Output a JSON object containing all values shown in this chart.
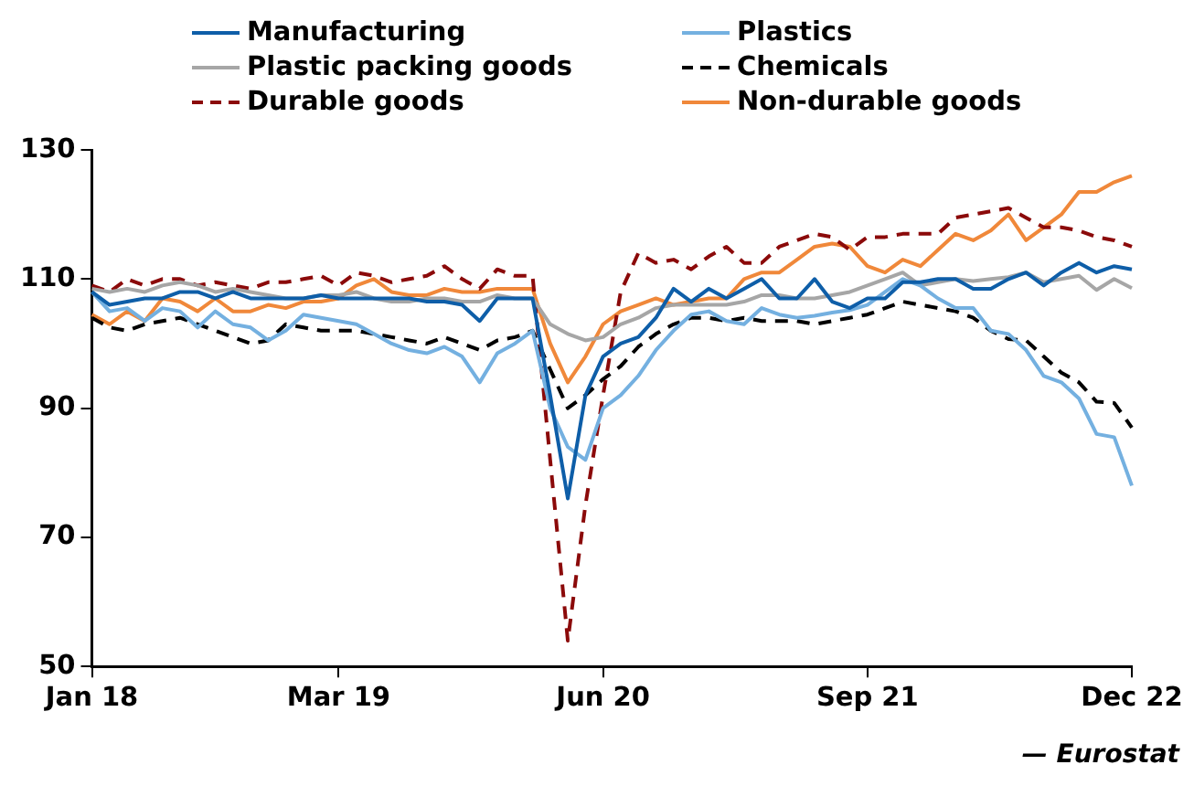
{
  "chart_data": {
    "type": "line",
    "categories": [
      "Jan 18",
      null,
      null,
      null,
      null,
      null,
      null,
      null,
      null,
      null,
      null,
      null,
      null,
      null,
      "Mar 19",
      null,
      null,
      null,
      null,
      null,
      null,
      null,
      null,
      null,
      null,
      null,
      null,
      null,
      null,
      "Jun 20",
      null,
      null,
      null,
      null,
      null,
      null,
      null,
      null,
      null,
      null,
      null,
      null,
      null,
      null,
      "Sep 21",
      null,
      null,
      null,
      null,
      null,
      null,
      null,
      null,
      null,
      null,
      null,
      null,
      null,
      null,
      "Dec 22"
    ],
    "series": [
      {
        "name": "Manufacturing",
        "color": "#0e5ea8",
        "values": [
          108,
          106,
          106.5,
          107,
          107,
          108,
          108,
          107,
          108,
          107,
          107,
          107,
          107,
          107.5,
          107,
          107,
          107,
          107,
          107,
          106.5,
          106.5,
          106,
          103.5,
          107,
          107,
          107,
          92,
          76,
          92,
          98,
          100,
          101,
          104,
          108.5,
          106.5,
          108.5,
          107,
          108.5,
          110,
          107,
          107,
          110,
          106.5,
          105.5,
          107,
          107,
          109.5,
          109.5,
          110,
          110,
          108.5,
          108.5,
          110,
          111,
          109,
          111,
          112.5,
          111,
          112,
          111.5
        ]
      },
      {
        "name": "Plastics",
        "color": "#74b0e0",
        "values": [
          108,
          105,
          105.5,
          103.5,
          105.5,
          105,
          102.5,
          105,
          103,
          102.5,
          100.5,
          102,
          104.5,
          104,
          103.5,
          103,
          101.5,
          100,
          99,
          98.5,
          99.5,
          98,
          94,
          98.5,
          100,
          102,
          90,
          84,
          82,
          90,
          92,
          95,
          99,
          102,
          104.5,
          105,
          103.5,
          103,
          105.5,
          104.5,
          104,
          104.3,
          104.8,
          105.2,
          106,
          108,
          110,
          109,
          107,
          105.5,
          105.5,
          102,
          101.5,
          99,
          95,
          94,
          91.5,
          86,
          85.5,
          78
        ]
      },
      {
        "name": "Plastic packing goods",
        "color": "#a6a6a6",
        "values": [
          108.5,
          108,
          108.5,
          108,
          109,
          109.5,
          109,
          108,
          108.5,
          108,
          107.5,
          107,
          107,
          107.5,
          107.5,
          108,
          107,
          106.5,
          106.5,
          107,
          107,
          106.5,
          106.5,
          107.5,
          107,
          107,
          103,
          101.5,
          100.5,
          101,
          103,
          104,
          105.5,
          106,
          106,
          106,
          106,
          106.5,
          107.5,
          107.5,
          107,
          107,
          107.5,
          108,
          109,
          110,
          111,
          109,
          109.5,
          110,
          109.7,
          110,
          110.3,
          111,
          109.5,
          110,
          110.5,
          108.3,
          110,
          108.6
        ]
      },
      {
        "name": "Chemicals",
        "color": "#000000",
        "line_style": "dashed",
        "values": [
          104,
          102.5,
          102,
          103,
          103.5,
          104,
          103,
          102,
          101,
          100,
          100.5,
          103,
          102.5,
          102,
          102,
          102,
          101.5,
          101,
          100.5,
          100,
          101,
          100,
          99,
          100.5,
          101,
          102,
          96,
          90,
          92,
          94.5,
          96.5,
          99.5,
          101.5,
          103,
          104,
          104,
          103.5,
          104,
          103.5,
          103.5,
          103.5,
          103,
          103.5,
          104,
          104.5,
          105.5,
          106.5,
          106,
          105.5,
          105,
          104,
          102,
          100.7,
          100.5,
          98,
          95.5,
          94,
          91,
          90.8,
          87
        ]
      },
      {
        "name": "Durable goods",
        "color": "#8b0a0a",
        "line_style": "dashed",
        "values": [
          109,
          108,
          110,
          109,
          110,
          110,
          109,
          109.5,
          109,
          108.5,
          109.5,
          109.5,
          110,
          110.5,
          109,
          111,
          110.5,
          109.5,
          110,
          110.5,
          112,
          110,
          108.5,
          111.5,
          110.5,
          110.5,
          82,
          54,
          75,
          92,
          108,
          114,
          112.5,
          113,
          111.5,
          113.5,
          115,
          112.5,
          112.5,
          115,
          116,
          117,
          116.5,
          114.5,
          116.5,
          116.5,
          117,
          117,
          117,
          119.5,
          120,
          120.5,
          121,
          119.5,
          118,
          118,
          117.5,
          116.5,
          116,
          115
        ]
      },
      {
        "name": "Non-durable goods",
        "color": "#f0883a",
        "values": [
          104.5,
          103,
          105,
          103.5,
          107,
          106.5,
          105,
          107,
          105,
          105,
          106,
          105.5,
          106.5,
          106.5,
          107,
          109,
          110,
          108,
          107.5,
          107.5,
          108.5,
          108,
          108,
          108.5,
          108.5,
          108.5,
          100,
          94,
          98,
          103,
          105,
          106,
          107,
          106,
          106.5,
          107,
          107,
          110,
          111,
          111,
          113,
          115,
          115.5,
          115,
          112,
          111,
          113,
          112,
          114.5,
          117,
          116,
          117.5,
          120,
          116,
          118,
          120,
          123.5,
          123.5,
          125,
          126
        ]
      }
    ],
    "ylim": [
      50,
      130
    ],
    "yticks": [
      50,
      70,
      90,
      110,
      130
    ],
    "grid": false,
    "legend": "top",
    "marker": "none",
    "annotations": [
      "— Eurostat"
    ]
  }
}
